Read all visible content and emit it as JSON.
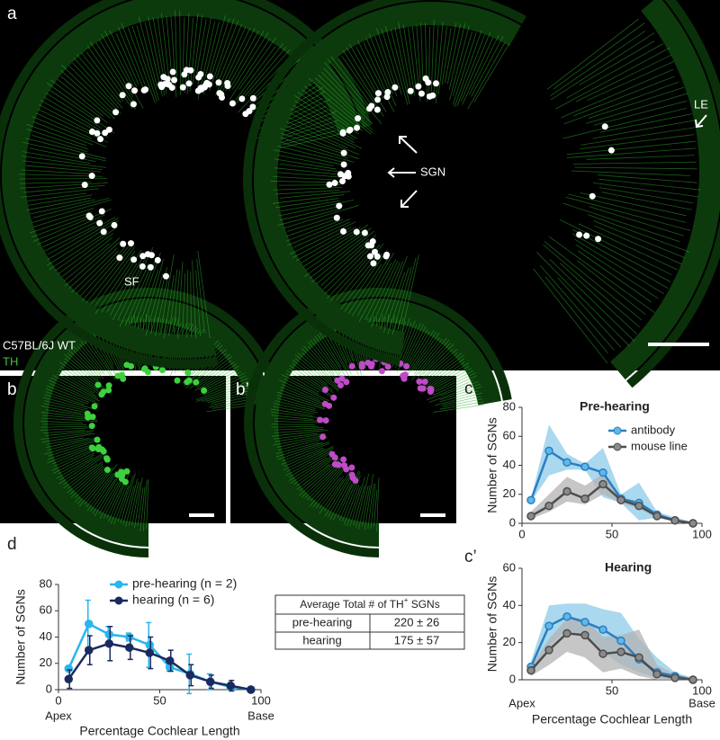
{
  "figure": {
    "panel_labels": [
      "a",
      "b",
      "b’",
      "c",
      "c’",
      "d"
    ],
    "image_labels": {
      "sf": "SF",
      "sgn": "SGN",
      "le": "LE",
      "strain": "C57BL/6J WT",
      "stain": "TH"
    }
  },
  "chart_data": [
    {
      "type": "line",
      "title": "Pre-hearing",
      "ylabel": "Number of SGNs",
      "x": [
        5,
        15,
        25,
        35,
        45,
        55,
        65,
        75,
        85,
        95
      ],
      "xlim": [
        0,
        100
      ],
      "xticks": [
        0,
        50,
        100
      ],
      "ylim": [
        0,
        80
      ],
      "yticks": [
        0,
        20,
        40,
        60,
        80
      ],
      "series": [
        {
          "name": "antibody",
          "color": "#2a7fc1",
          "band_color": "#8ecbe8",
          "values": [
            16,
            50,
            42,
            39,
            35,
            17,
            14,
            6,
            2,
            0
          ],
          "upper": [
            17,
            68,
            48,
            41,
            52,
            20,
            28,
            8,
            4,
            1
          ],
          "lower": [
            15,
            33,
            37,
            37,
            18,
            14,
            2,
            4,
            1,
            0
          ]
        },
        {
          "name": "mouse line",
          "color": "#4d4d4d",
          "band_color": "#b3b3b3",
          "values": [
            5,
            12,
            22,
            17,
            27,
            16,
            12,
            5,
            2,
            0
          ],
          "upper": [
            8,
            20,
            32,
            26,
            34,
            18,
            14,
            7,
            3,
            1
          ],
          "lower": [
            3,
            8,
            15,
            13,
            20,
            14,
            10,
            4,
            1,
            0
          ]
        }
      ]
    },
    {
      "type": "line",
      "title": "Hearing",
      "ylabel": "Number of SGNs",
      "xlabel": "Percentage Cochlear Length",
      "x": [
        5,
        15,
        25,
        35,
        45,
        55,
        65,
        75,
        85,
        95
      ],
      "xlim": [
        0,
        100
      ],
      "xticks": [
        50,
        100
      ],
      "x_end_labels": [
        "Apex",
        "Base"
      ],
      "ylim": [
        0,
        60
      ],
      "yticks": [
        0,
        20,
        40,
        60
      ],
      "series": [
        {
          "name": "antibody",
          "color": "#2a7fc1",
          "band_color": "#8ecbe8",
          "values": [
            7,
            29,
            34,
            31,
            27,
            21,
            11,
            4,
            2,
            0
          ],
          "upper": [
            10,
            40,
            41,
            41,
            38,
            36,
            22,
            12,
            4,
            1
          ],
          "lower": [
            4,
            18,
            27,
            22,
            15,
            8,
            4,
            1,
            0,
            0
          ]
        },
        {
          "name": "mouse line",
          "color": "#4d4d4d",
          "band_color": "#b3b3b3",
          "values": [
            5,
            16,
            25,
            24,
            14,
            15,
            12,
            3,
            1,
            0
          ],
          "upper": [
            7,
            22,
            33,
            33,
            23,
            24,
            27,
            8,
            3,
            1
          ],
          "lower": [
            2,
            8,
            15,
            12,
            4,
            6,
            2,
            0,
            0,
            0
          ]
        }
      ]
    },
    {
      "type": "line",
      "ylabel": "Number of SGNs",
      "xlabel": "Percentage Cochlear Length",
      "x": [
        5,
        15,
        25,
        35,
        45,
        55,
        65,
        75,
        85,
        95
      ],
      "xlim": [
        0,
        100
      ],
      "xticks": [
        0,
        50,
        100
      ],
      "x_end_labels": [
        "Apex",
        "Base"
      ],
      "ylim": [
        0,
        80
      ],
      "yticks": [
        0,
        20,
        40,
        60,
        80
      ],
      "series": [
        {
          "name": "pre-hearing (n = 2)",
          "color": "#29b6ec",
          "values": [
            16,
            50,
            42,
            40,
            34,
            17,
            12,
            6,
            2,
            0
          ],
          "errors": [
            0,
            18,
            6,
            3,
            17,
            3,
            15,
            6,
            2,
            0
          ]
        },
        {
          "name": "hearing (n = 6)",
          "color": "#1b2a5e",
          "values": [
            8,
            30,
            35,
            32,
            28,
            22,
            11,
            6,
            3,
            0
          ],
          "errors": [
            7,
            11,
            13,
            9,
            12,
            8,
            8,
            5,
            4,
            1
          ]
        }
      ]
    }
  ],
  "table": {
    "header": [
      "Average Total # of TH",
      "+",
      " SGNs"
    ],
    "rows": [
      [
        "pre-hearing",
        "220 ± 26"
      ],
      [
        "hearing",
        "175 ± 57"
      ]
    ]
  }
}
